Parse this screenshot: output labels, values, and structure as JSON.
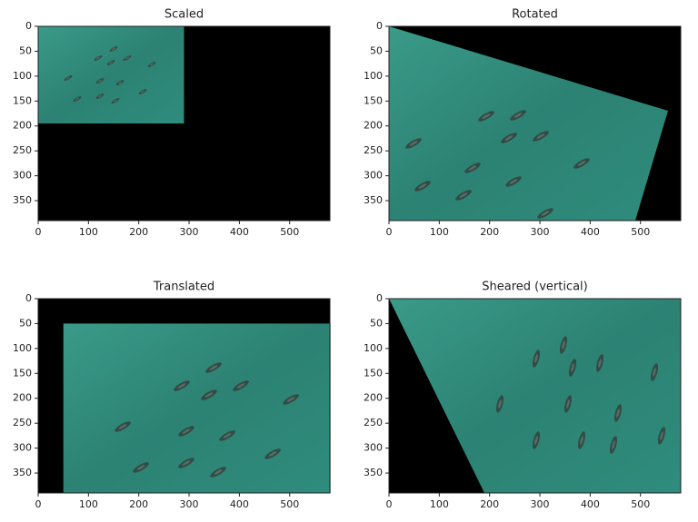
{
  "chart_data": [
    {
      "type": "image",
      "title": "Scaled",
      "xlim": [
        0,
        580
      ],
      "ylim": [
        390,
        0
      ],
      "xticks": [
        0,
        100,
        200,
        300,
        400,
        500
      ],
      "yticks": [
        0,
        50,
        100,
        150,
        200,
        250,
        300,
        350
      ]
    },
    {
      "type": "image",
      "title": "Rotated",
      "xlim": [
        0,
        580
      ],
      "ylim": [
        390,
        0
      ],
      "xticks": [
        0,
        100,
        200,
        300,
        400,
        500
      ],
      "yticks": [
        0,
        50,
        100,
        150,
        200,
        250,
        300,
        350
      ]
    },
    {
      "type": "image",
      "title": "Translated",
      "xlim": [
        0,
        580
      ],
      "ylim": [
        390,
        0
      ],
      "xticks": [
        0,
        100,
        200,
        300,
        400,
        500
      ],
      "yticks": [
        0,
        50,
        100,
        150,
        200,
        250,
        300,
        350
      ]
    },
    {
      "type": "image",
      "title": "Sheared (vertical)",
      "xlim": [
        0,
        580
      ],
      "ylim": [
        390,
        0
      ],
      "xticks": [
        0,
        100,
        200,
        300,
        400,
        500
      ],
      "yticks": [
        0,
        50,
        100,
        150,
        200,
        250,
        300,
        350
      ]
    }
  ]
}
